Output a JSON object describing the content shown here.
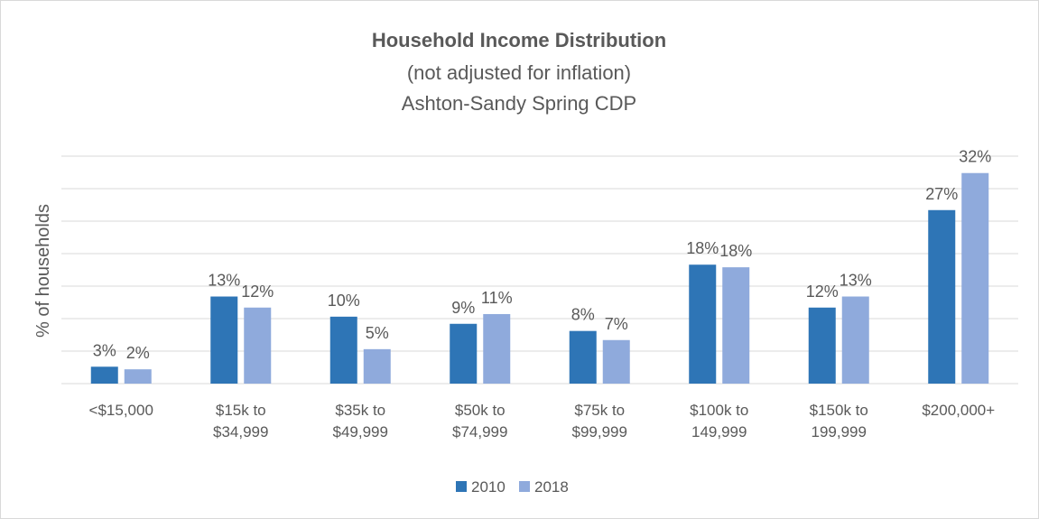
{
  "chart_data": {
    "type": "bar",
    "title": "Household Income Distribution",
    "subtitle": [
      "(not adjusted for inflation)",
      "Ashton-Sandy Spring CDP"
    ],
    "ylabel": "% of households",
    "categories": [
      "<$15,000",
      "$15k to\n$34,999",
      "$35k to\n$49,999",
      "$50k to\n$74,999",
      "$75k to\n$99,999",
      "$100k to\n149,999",
      "$150k to\n199,999",
      "$200,000+"
    ],
    "series": [
      {
        "name": "2010",
        "color": "#2e75b6",
        "values": [
          2.6,
          13.4,
          10.3,
          9.2,
          8.1,
          18.3,
          11.7,
          26.7
        ],
        "value_labels": [
          "3%",
          "13%",
          "10%",
          "9%",
          "8%",
          "18%",
          "12%",
          "27%"
        ]
      },
      {
        "name": "2018",
        "color": "#8faadc",
        "values": [
          2.2,
          11.7,
          5.3,
          10.7,
          6.7,
          17.9,
          13.4,
          32.4
        ],
        "value_labels": [
          "2%",
          "12%",
          "5%",
          "11%",
          "7%",
          "18%",
          "13%",
          "32%"
        ]
      }
    ],
    "ylim": [
      0,
      35
    ],
    "yticks": [
      0,
      5,
      10,
      15,
      20,
      25,
      30,
      35
    ],
    "grid": true,
    "legend": "bottom"
  }
}
